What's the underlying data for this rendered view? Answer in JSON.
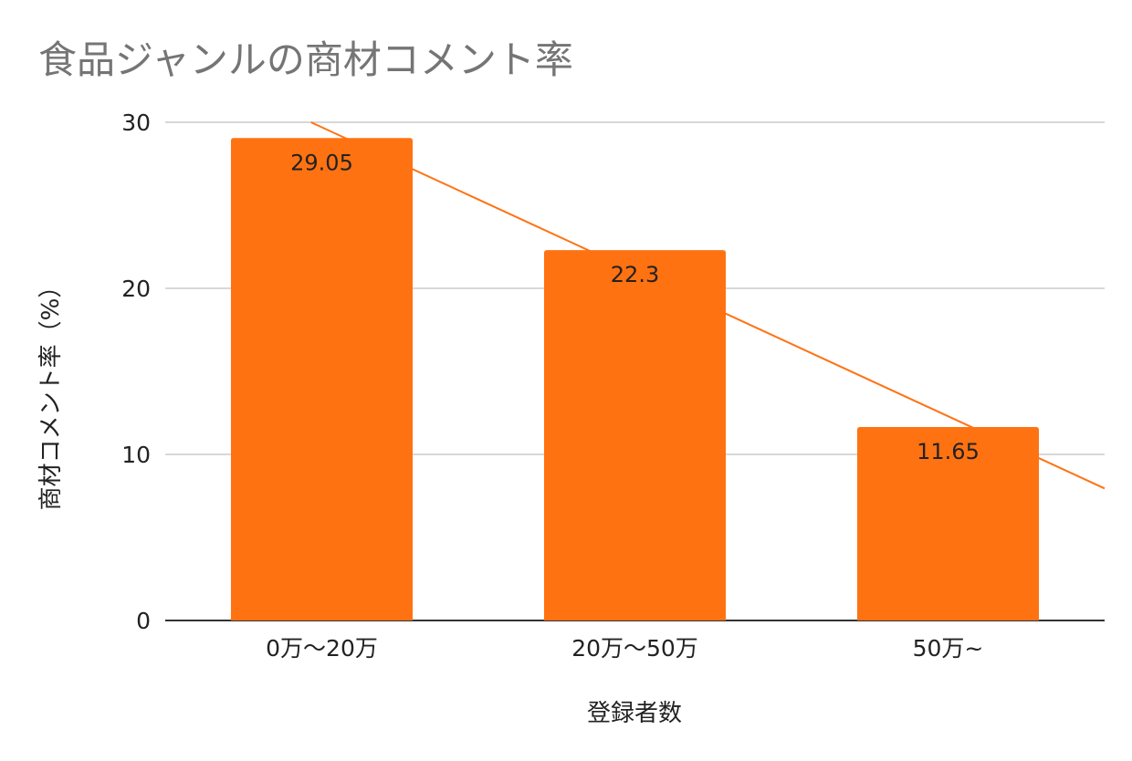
{
  "chart_data": {
    "type": "bar",
    "title": "食品ジャンルの商材コメント率",
    "xlabel": "登録者数",
    "ylabel": "商材コメント率（%）",
    "categories": [
      "0万〜20万",
      "20万〜50万",
      "50万~"
    ],
    "series": [
      {
        "values": [
          29.05,
          22.3,
          11.65
        ],
        "color": "#ff7212"
      }
    ],
    "data_labels": [
      "29.05",
      "22.3",
      "11.65"
    ],
    "ylim": [
      0,
      30
    ],
    "yticks": [
      0,
      10,
      20,
      30
    ],
    "ytick_labels": [
      "0",
      "10",
      "20",
      "30"
    ],
    "grid": true,
    "legend": "none",
    "trendline": {
      "type": "linear",
      "color": "#ff7212"
    }
  }
}
